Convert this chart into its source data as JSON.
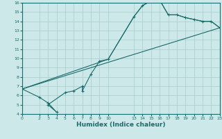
{
  "xlabel": "Humidex (Indice chaleur)",
  "bg_color": "#cce8e8",
  "grid_color": "#a8cccc",
  "line_color": "#1a6b6b",
  "xlim": [
    0,
    23
  ],
  "ylim": [
    4,
    16
  ],
  "xticks": [
    0,
    2,
    3,
    4,
    5,
    6,
    7,
    8,
    9,
    10,
    13,
    14,
    15,
    16,
    17,
    18,
    19,
    20,
    21,
    22,
    23
  ],
  "yticks": [
    4,
    5,
    6,
    7,
    8,
    9,
    10,
    11,
    12,
    13,
    14,
    15,
    16
  ],
  "series1_x": [
    0,
    2,
    3,
    4,
    3,
    5,
    6,
    7,
    7,
    8,
    9,
    10,
    13,
    14,
    15,
    16,
    17,
    18,
    19,
    20,
    21,
    22,
    23
  ],
  "series1_y": [
    6.7,
    5.8,
    5.2,
    4.2,
    5.0,
    6.3,
    6.5,
    7.0,
    6.5,
    8.3,
    9.7,
    9.9,
    14.5,
    15.7,
    16.2,
    16.3,
    14.7,
    14.7,
    14.4,
    14.2,
    14.0,
    14.0,
    13.3
  ],
  "series2_x": [
    0,
    23
  ],
  "series2_y": [
    6.7,
    13.3
  ],
  "series3_x": [
    0,
    10,
    13,
    14,
    15,
    16,
    17,
    18,
    19,
    20,
    21,
    22,
    23
  ],
  "series3_y": [
    6.7,
    9.9,
    14.5,
    15.7,
    16.2,
    16.3,
    14.7,
    14.7,
    14.4,
    14.2,
    14.0,
    14.0,
    13.3
  ]
}
